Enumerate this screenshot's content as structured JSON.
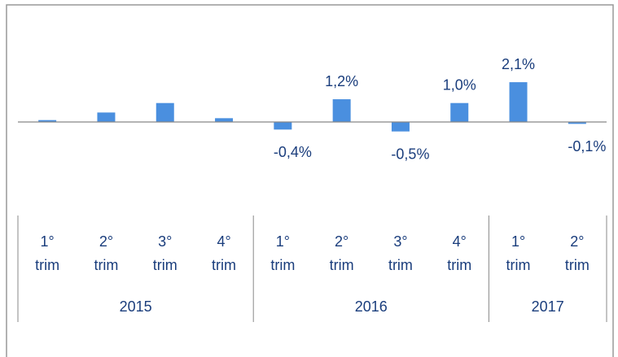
{
  "chart_data": {
    "type": "bar",
    "categories": [
      "1° trim",
      "2° trim",
      "3° trim",
      "4° trim",
      "1° trim",
      "2° trim",
      "3° trim",
      "4° trim",
      "1° trim",
      "2° trim"
    ],
    "groups": [
      {
        "name": "2015",
        "categories": [
          0,
          1,
          2,
          3
        ]
      },
      {
        "name": "2016",
        "categories": [
          4,
          5,
          6,
          7
        ]
      },
      {
        "name": "2017",
        "categories": [
          8,
          9
        ]
      }
    ],
    "values": [
      0.1,
      0.5,
      1.0,
      0.2,
      -0.4,
      1.2,
      -0.5,
      1.0,
      2.1,
      -0.1
    ],
    "value_labels": [
      null,
      null,
      null,
      null,
      "-0,4%",
      "1,2%",
      "-0,5%",
      "1,0%",
      "2,1%",
      "-0,1%"
    ],
    "color": "#4a8fdf"
  }
}
